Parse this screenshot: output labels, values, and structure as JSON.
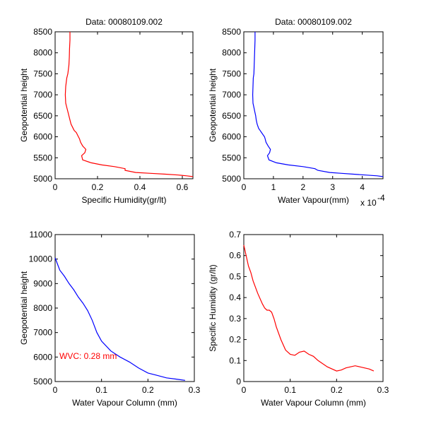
{
  "figure": {
    "background": "#ffffff",
    "line_colors": {
      "red": "#ff0000",
      "blue": "#0000ff"
    }
  },
  "chart_data": [
    {
      "type": "line",
      "title": "Data: 00080109.002",
      "xlabel": "Specific Humidity(gr/lt)",
      "ylabel": "Geopotential height",
      "xlim": [
        0,
        0.65
      ],
      "ylim": [
        5000,
        8500
      ],
      "xticks": [
        0,
        0.2,
        0.4,
        0.6
      ],
      "xtick_labels": [
        "0",
        "0.2",
        "0.4",
        "0.6"
      ],
      "yticks": [
        5000,
        5500,
        6000,
        6500,
        7000,
        7500,
        8000,
        8500
      ],
      "ytick_labels": [
        "5000",
        "5500",
        "6000",
        "6500",
        "7000",
        "7500",
        "8000",
        "8500"
      ],
      "color": "#ff0000",
      "series": [
        {
          "x": [
            0.65,
            0.62,
            0.58,
            0.52,
            0.45,
            0.38,
            0.33,
            0.33,
            0.28,
            0.22,
            0.17,
            0.13,
            0.125,
            0.14,
            0.145,
            0.13,
            0.12,
            0.115,
            0.11,
            0.1,
            0.09,
            0.085,
            0.075,
            0.07,
            0.065,
            0.06,
            0.055,
            0.05,
            0.048,
            0.05,
            0.055,
            0.06,
            0.065,
            0.067,
            0.068,
            0.07,
            0.07
          ],
          "y": [
            5050,
            5070,
            5090,
            5110,
            5130,
            5150,
            5200,
            5240,
            5290,
            5330,
            5380,
            5450,
            5550,
            5620,
            5700,
            5780,
            5870,
            5950,
            6000,
            6100,
            6150,
            6200,
            6300,
            6400,
            6500,
            6600,
            6700,
            6800,
            7000,
            7200,
            7400,
            7500,
            7700,
            7900,
            8100,
            8300,
            8500
          ]
        }
      ]
    },
    {
      "type": "line",
      "title": "Data: 00080109.002",
      "xlabel": "Water Vapour(mm)",
      "ylabel": "Geopotential height",
      "x_multiplier": "x 10",
      "x_multiplier_exp": "-4",
      "xlim": [
        0,
        4.7
      ],
      "ylim": [
        5000,
        8500
      ],
      "xticks": [
        0,
        1,
        2,
        3,
        4
      ],
      "xtick_labels": [
        "0",
        "1",
        "2",
        "3",
        "4"
      ],
      "yticks": [
        5000,
        5500,
        6000,
        6500,
        7000,
        7500,
        8000,
        8500
      ],
      "ytick_labels": [
        "5000",
        "5500",
        "6000",
        "6500",
        "7000",
        "7500",
        "8000",
        "8500"
      ],
      "color": "#0000ff",
      "series": [
        {
          "x": [
            4.7,
            4.5,
            4.1,
            3.7,
            3.3,
            2.9,
            2.5,
            2.4,
            2.0,
            1.5,
            1.1,
            0.85,
            0.8,
            0.87,
            0.9,
            0.82,
            0.75,
            0.72,
            0.7,
            0.6,
            0.55,
            0.5,
            0.45,
            0.42,
            0.4,
            0.37,
            0.34,
            0.31,
            0.3,
            0.31,
            0.32,
            0.34,
            0.35,
            0.36,
            0.37,
            0.38,
            0.38
          ],
          "y": [
            5050,
            5070,
            5090,
            5110,
            5130,
            5150,
            5200,
            5240,
            5290,
            5330,
            5380,
            5450,
            5550,
            5620,
            5700,
            5780,
            5870,
            5950,
            6000,
            6100,
            6150,
            6200,
            6300,
            6400,
            6500,
            6600,
            6700,
            6800,
            7000,
            7200,
            7400,
            7500,
            7700,
            7900,
            8100,
            8300,
            8500
          ]
        }
      ]
    },
    {
      "type": "line",
      "title": "",
      "xlabel": "Water Vapour Column (mm)",
      "ylabel": "Geopotential height",
      "annotation": "WVC: 0.28 mm",
      "annotation_color": "#ff0000",
      "xlim": [
        0,
        0.3
      ],
      "ylim": [
        5000,
        11000
      ],
      "xticks": [
        0,
        0.1,
        0.2,
        0.3
      ],
      "xtick_labels": [
        "0",
        "0.1",
        "0.2",
        "0.3"
      ],
      "yticks": [
        5000,
        6000,
        7000,
        8000,
        9000,
        10000,
        11000
      ],
      "ytick_labels": [
        "5000",
        "6000",
        "7000",
        "8000",
        "9000",
        "10000",
        "11000"
      ],
      "color": "#0000ff",
      "series": [
        {
          "x": [
            0,
            0.005,
            0.01,
            0.02,
            0.03,
            0.04,
            0.05,
            0.06,
            0.07,
            0.08,
            0.09,
            0.1,
            0.12,
            0.14,
            0.16,
            0.18,
            0.2,
            0.22,
            0.24,
            0.26,
            0.28
          ],
          "y": [
            10050,
            9800,
            9550,
            9300,
            9000,
            8750,
            8450,
            8200,
            7900,
            7500,
            7000,
            6650,
            6250,
            6000,
            5800,
            5550,
            5350,
            5250,
            5150,
            5100,
            5050
          ]
        }
      ]
    },
    {
      "type": "line",
      "title": "",
      "xlabel": "Water Vapour Column (mm)",
      "ylabel": "Specific Humidity (gr/lt)",
      "xlim": [
        0,
        0.3
      ],
      "ylim": [
        0,
        0.7
      ],
      "xticks": [
        0,
        0.1,
        0.2,
        0.3
      ],
      "xtick_labels": [
        "0",
        "0.1",
        "0.2",
        "0.3"
      ],
      "yticks": [
        0,
        0.1,
        0.2,
        0.3,
        0.4,
        0.5,
        0.6,
        0.7
      ],
      "ytick_labels": [
        "0",
        "0.1",
        "0.2",
        "0.3",
        "0.4",
        "0.5",
        "0.6",
        "0.7"
      ],
      "color": "#ff0000",
      "series": [
        {
          "x": [
            0,
            0.005,
            0.01,
            0.015,
            0.02,
            0.03,
            0.04,
            0.045,
            0.05,
            0.055,
            0.06,
            0.065,
            0.07,
            0.08,
            0.09,
            0.1,
            0.11,
            0.12,
            0.13,
            0.14,
            0.15,
            0.16,
            0.18,
            0.2,
            0.21,
            0.22,
            0.23,
            0.24,
            0.25,
            0.26,
            0.27,
            0.28
          ],
          "y": [
            0.65,
            0.6,
            0.55,
            0.52,
            0.48,
            0.42,
            0.37,
            0.35,
            0.34,
            0.34,
            0.33,
            0.3,
            0.26,
            0.2,
            0.15,
            0.13,
            0.125,
            0.14,
            0.145,
            0.13,
            0.12,
            0.1,
            0.07,
            0.05,
            0.055,
            0.065,
            0.07,
            0.075,
            0.07,
            0.065,
            0.06,
            0.05
          ]
        }
      ]
    }
  ]
}
